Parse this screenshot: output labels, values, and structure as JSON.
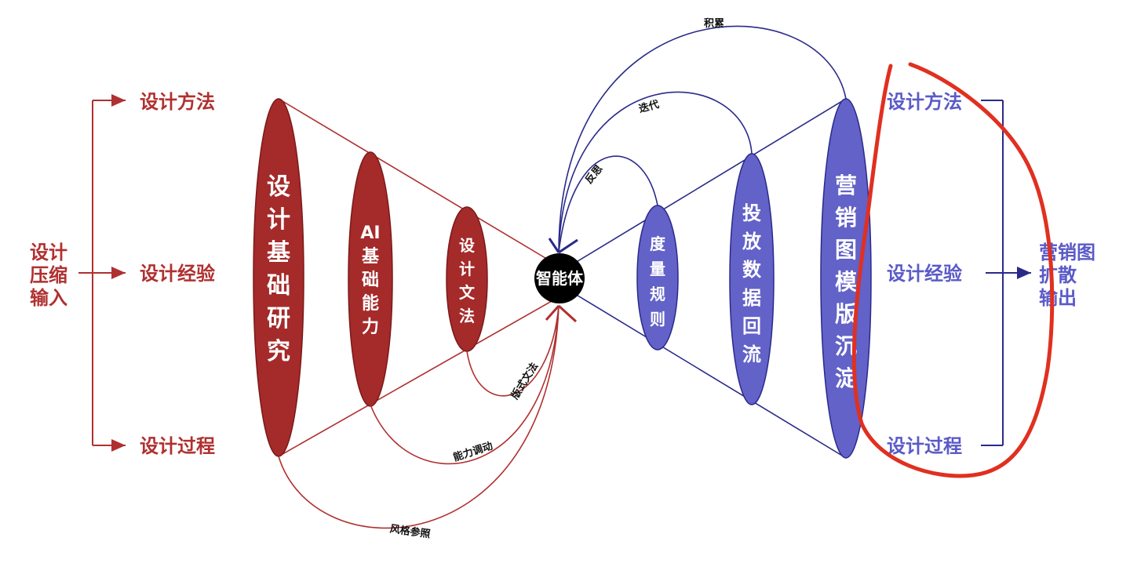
{
  "left_group": {
    "title_lines": [
      "设计",
      "压缩",
      "输入"
    ],
    "items": [
      "设计方法",
      "设计经验",
      "设计过程"
    ]
  },
  "left_cone": {
    "big_lines": [
      "设",
      "计",
      "基",
      "础",
      "研",
      "究"
    ],
    "mid_lines": [
      "AI",
      "基",
      "础",
      "能",
      "力"
    ],
    "small_lines": [
      "设",
      "计",
      "文",
      "法"
    ]
  },
  "center": {
    "label": "智能体"
  },
  "right_cone": {
    "small_lines": [
      "度",
      "量",
      "规",
      "则"
    ],
    "mid_lines": [
      "投",
      "放",
      "数",
      "据",
      "回",
      "流"
    ],
    "big_lines": [
      "营",
      "销",
      "图",
      "模",
      "版",
      "沉",
      "淀"
    ]
  },
  "right_group": {
    "items": [
      "设计方法",
      "设计经验",
      "设计过程"
    ],
    "title_lines": [
      "营销图",
      "扩散",
      "输出"
    ]
  },
  "arcs": {
    "top": [
      "积累",
      "迭代",
      "反思"
    ],
    "bottom": [
      "版式文法",
      "能力调动",
      "风格参照"
    ]
  },
  "colors": {
    "red": "#b03030",
    "dark_red": "#a52a2a",
    "blue": "#5a5ac8",
    "dark_blue": "#2a2a8a",
    "annotation": "#e03020",
    "center_fill": "#000000"
  }
}
